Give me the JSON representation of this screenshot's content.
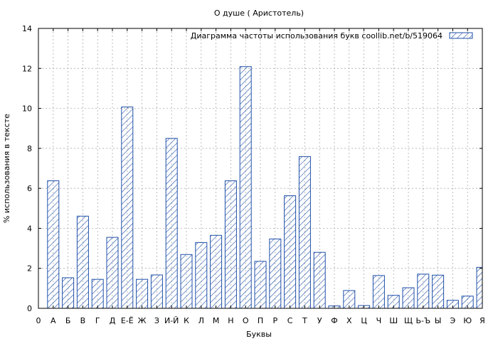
{
  "chart_data": {
    "type": "bar",
    "title": "О душе ( Аристотель)",
    "xlabel": "Буквы",
    "ylabel": "% использования в тексте",
    "legend": "Диаграмма частоты использования букв  coollib.net/b/519064",
    "legend_position": "top-right",
    "grid": true,
    "ylim": [
      0,
      14
    ],
    "yticks": [
      "0",
      "2",
      "4",
      "6",
      "8",
      "10",
      "12",
      "14"
    ],
    "categories": [
      "0",
      "А",
      "Б",
      "В",
      "Г",
      "Д",
      "Е-Ё",
      "Ж",
      "З",
      "И-Й",
      "К",
      "Л",
      "М",
      "Н",
      "О",
      "П",
      "Р",
      "С",
      "Т",
      "У",
      "Ф",
      "Х",
      "Ц",
      "Ч",
      "Ш",
      "Щ",
      "Ь-Ъ",
      "Ы",
      "Э",
      "Ю",
      "Я"
    ],
    "values": [
      0,
      6.38,
      1.53,
      4.61,
      1.45,
      3.55,
      10.07,
      1.45,
      1.67,
      8.5,
      2.69,
      3.29,
      3.65,
      6.38,
      12.09,
      2.35,
      3.47,
      5.63,
      7.59,
      2.8,
      0.12,
      0.89,
      0.14,
      1.64,
      0.65,
      1.03,
      1.71,
      1.66,
      0.4,
      0.61,
      2.05
    ],
    "colors": {
      "bar_stroke": "#1f4fa8",
      "hatch": "#1f4fa8"
    }
  }
}
